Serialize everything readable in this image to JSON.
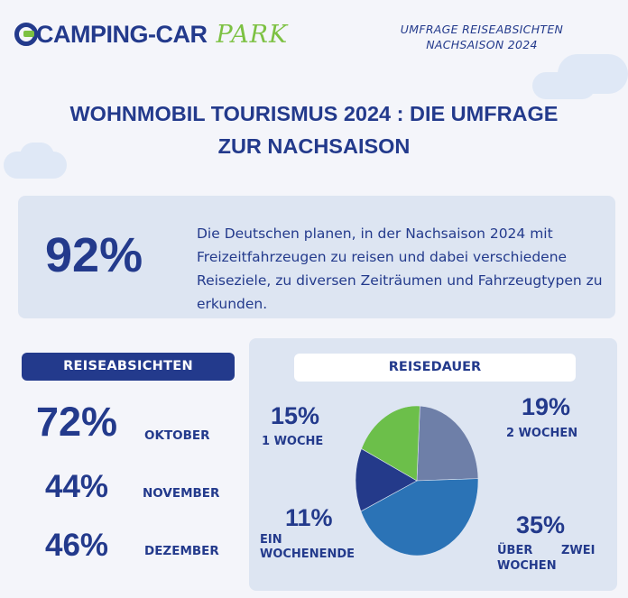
{
  "logo": {
    "main": "CAMPING-CAR",
    "accent": "PARK"
  },
  "header": {
    "survey_line1": "UMFRAGE REISEABSICHTEN",
    "survey_line2": "NACHSAISON 2024"
  },
  "title": {
    "line1": "WOHNMOBIL TOURISMUS 2024 : DIE UMFRAGE",
    "line2": "ZUR NACHSAISON"
  },
  "highlight": {
    "value": "92%",
    "text": "Die Deutschen planen, in der Nachsaison 2024 mit Freizeitfahrzeugen zu reisen und dabei verschiedene Reiseziele, zu diversen Zeiträumen und Fahrzeugtypen zu erkunden."
  },
  "colors": {
    "navy": "#233a8c",
    "green": "#7cc142",
    "pie_green": "#6cbf4a",
    "pie_slate": "#6e7fa8",
    "pie_blue": "#2b73b6",
    "pie_navy": "#243a8a"
  },
  "chart_data": [
    {
      "type": "table",
      "title": "REISEABSICHTEN",
      "rows": [
        {
          "value": "72%",
          "month": "OKTOBER"
        },
        {
          "value": "44%",
          "month": "NOVEMBER"
        },
        {
          "value": "46%",
          "month": "DEZEMBER"
        }
      ]
    },
    {
      "type": "pie",
      "title": "REISEDAUER",
      "slices": [
        {
          "value": 15,
          "pct": "15%",
          "label_line1": "1 WOCHE",
          "label_line2": "",
          "color": "#6cbf4a"
        },
        {
          "value": 19,
          "pct": "19%",
          "label_line1": "2 WOCHEN",
          "label_line2": "",
          "color": "#6e7fa8"
        },
        {
          "value": 35,
          "pct": "35%",
          "label_line1": "ÜBER",
          "label_line1b": "ZWEI",
          "label_line2": "WOCHEN",
          "color": "#2b73b6"
        },
        {
          "value": 11,
          "pct": "11%",
          "label_line1": "EIN",
          "label_line2": "WOCHENENDE",
          "color": "#243a8a"
        }
      ]
    }
  ]
}
